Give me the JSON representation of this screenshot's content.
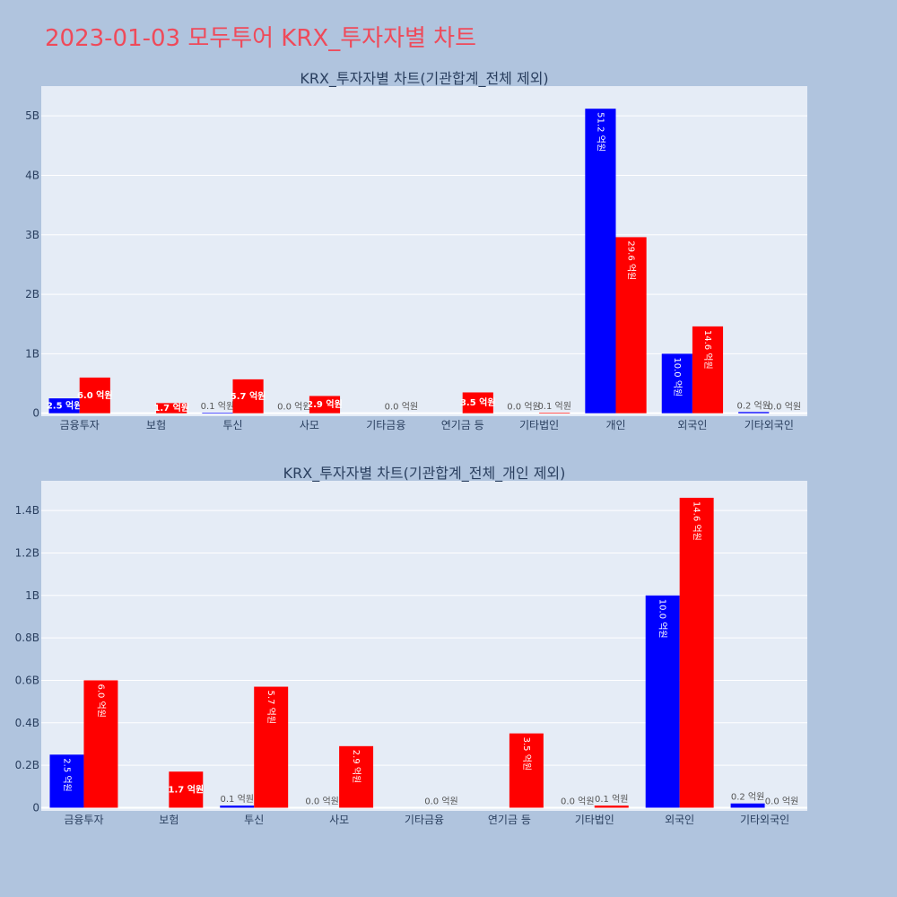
{
  "page": {
    "title": "2023-01-03 모두투어 KRX_투자자별 차트",
    "background": "#b0c4de",
    "title_color": "#ef4a5a"
  },
  "colors": {
    "plot_bg": "#e5ecf6",
    "grid": "#ffffff",
    "buy": "#0000ff",
    "sell": "#ff0000",
    "text": "#2a3f5f"
  },
  "chart_data": [
    {
      "type": "bar",
      "title": "KRX_투자자별 차트(기관합계_전체 제외)",
      "categories": [
        "금융투자",
        "보험",
        "투신",
        "사모",
        "기타금융",
        "연기금 등",
        "기타법인",
        "개인",
        "외국인",
        "기타외국인"
      ],
      "series": [
        {
          "color": "#0000ff",
          "values": [
            250000000,
            0,
            10000000,
            0,
            0,
            0,
            0,
            5120000000,
            1000000000,
            20000000
          ],
          "labels": [
            "2.5 억원",
            "",
            "0.1 억원",
            "0.0 억원",
            "",
            "",
            "0.0 억원",
            "51.2 억원",
            "10.0 억원",
            "0.2 억원"
          ]
        },
        {
          "color": "#ff0000",
          "values": [
            600000000,
            170000000,
            570000000,
            290000000,
            0,
            350000000,
            10000000,
            2960000000,
            1460000000,
            0
          ],
          "labels": [
            "6.0 억원",
            "1.7 억원",
            "5.7 억원",
            "2.9 억원",
            "0.0 억원",
            "3.5 억원",
            "0.1 억원",
            "29.6 억원",
            "14.6 억원",
            "0.0 억원"
          ]
        }
      ],
      "ylim": [
        -50000000,
        5500000000
      ],
      "yticks": [
        0,
        1000000000,
        2000000000,
        3000000000,
        4000000000,
        5000000000
      ],
      "ytick_labels": [
        "0",
        "1B",
        "2B",
        "3B",
        "4B",
        "5B"
      ],
      "grid": true
    },
    {
      "type": "bar",
      "title": "KRX_투자자별 차트(기관합계_전체_개인 제외)",
      "categories": [
        "금융투자",
        "보험",
        "투신",
        "사모",
        "기타금융",
        "연기금 등",
        "기타법인",
        "외국인",
        "기타외국인"
      ],
      "series": [
        {
          "color": "#0000ff",
          "values": [
            250000000,
            0,
            10000000,
            0,
            0,
            0,
            0,
            1000000000,
            20000000
          ],
          "labels": [
            "2.5 억원",
            "",
            "0.1 억원",
            "0.0 억원",
            "",
            "",
            "0.0 억원",
            "10.0 억원",
            "0.2 억원"
          ]
        },
        {
          "color": "#ff0000",
          "values": [
            600000000,
            170000000,
            570000000,
            290000000,
            0,
            350000000,
            10000000,
            1460000000,
            0
          ],
          "labels": [
            "6.0 억원",
            "1.7 억원",
            "5.7 억원",
            "2.9 억원",
            "0.0 억원",
            "3.5 억원",
            "0.1 억원",
            "14.6 억원",
            "0.0 억원"
          ]
        }
      ],
      "ylim": [
        -15000000,
        1540000000
      ],
      "yticks": [
        0,
        200000000,
        400000000,
        600000000,
        800000000,
        1000000000,
        1200000000,
        1400000000
      ],
      "ytick_labels": [
        "0",
        "0.2B",
        "0.4B",
        "0.6B",
        "0.8B",
        "1B",
        "1.2B",
        "1.4B"
      ],
      "grid": true
    }
  ]
}
